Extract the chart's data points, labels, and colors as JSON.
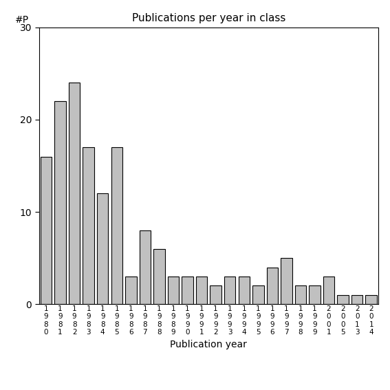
{
  "title": "Publications per year in class",
  "xlabel": "Publication year",
  "ylabel": "#P",
  "bar_color": "#c0c0c0",
  "edge_color": "#000000",
  "ylim": [
    0,
    30
  ],
  "yticks": [
    0,
    10,
    20,
    30
  ],
  "categories": [
    "1980",
    "1981",
    "1982",
    "1983",
    "1984",
    "1985",
    "1986",
    "1987",
    "1988",
    "1989",
    "1990",
    "1991",
    "1992",
    "1993",
    "1994",
    "1995",
    "1996",
    "1997",
    "1998",
    "1999",
    "2001",
    "2005",
    "2013",
    "2014"
  ],
  "values": [
    16,
    22,
    24,
    17,
    12,
    17,
    3,
    8,
    6,
    3,
    3,
    3,
    2,
    3,
    3,
    2,
    4,
    5,
    2,
    2,
    3,
    1,
    1,
    1
  ]
}
